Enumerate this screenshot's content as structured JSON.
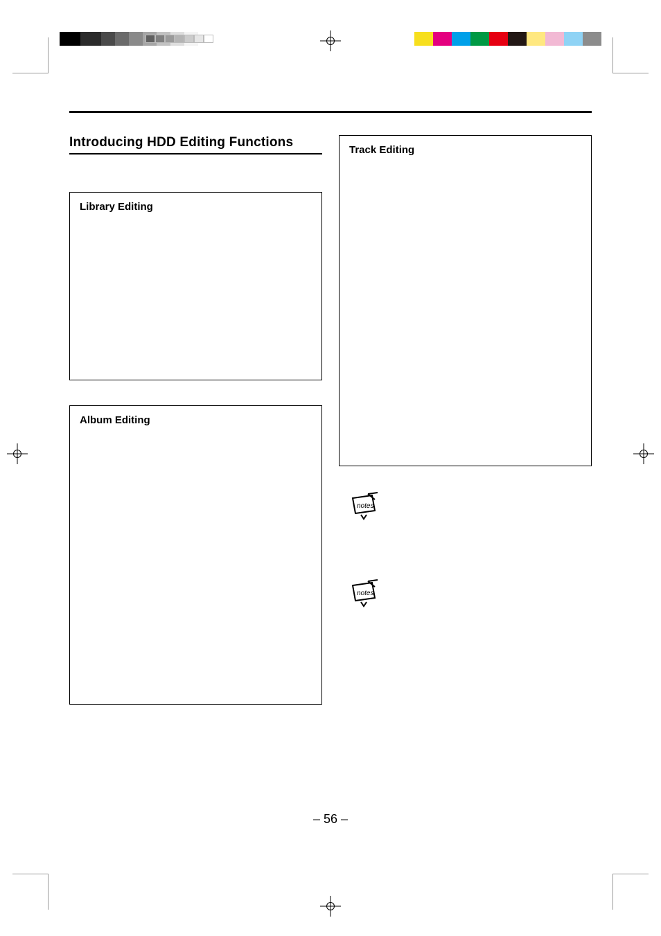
{
  "page": {
    "section_title": "Introducing HDD Editing Functions",
    "library_box_title": "Library Editing",
    "album_box_title": "Album Editing",
    "track_box_title": "Track Editing",
    "page_number": "– 56 –"
  },
  "printer_marks": {
    "grayscale_swatches": [
      "#000000",
      "#2b2b2b",
      "#4a4a4a",
      "#6b6b6b",
      "#8a8a8a",
      "#a6a6a6",
      "#c2c2c2",
      "#dedede",
      "#f4f4f4"
    ],
    "gray_thin_swatches": [
      "#606060",
      "#808080",
      "#9a9a9a",
      "#b4b4b4",
      "#cccccc",
      "#e6e6e6",
      "#ffffff"
    ],
    "color_swatches": [
      "#f7df1e",
      "#e4007f",
      "#00a0e9",
      "#009944",
      "#e60012",
      "#231815",
      "#ffe880",
      "#f2b9d4",
      "#8fd3f5",
      "#8c8c8c"
    ],
    "background": "#ffffff",
    "rule_color": "#000000"
  }
}
